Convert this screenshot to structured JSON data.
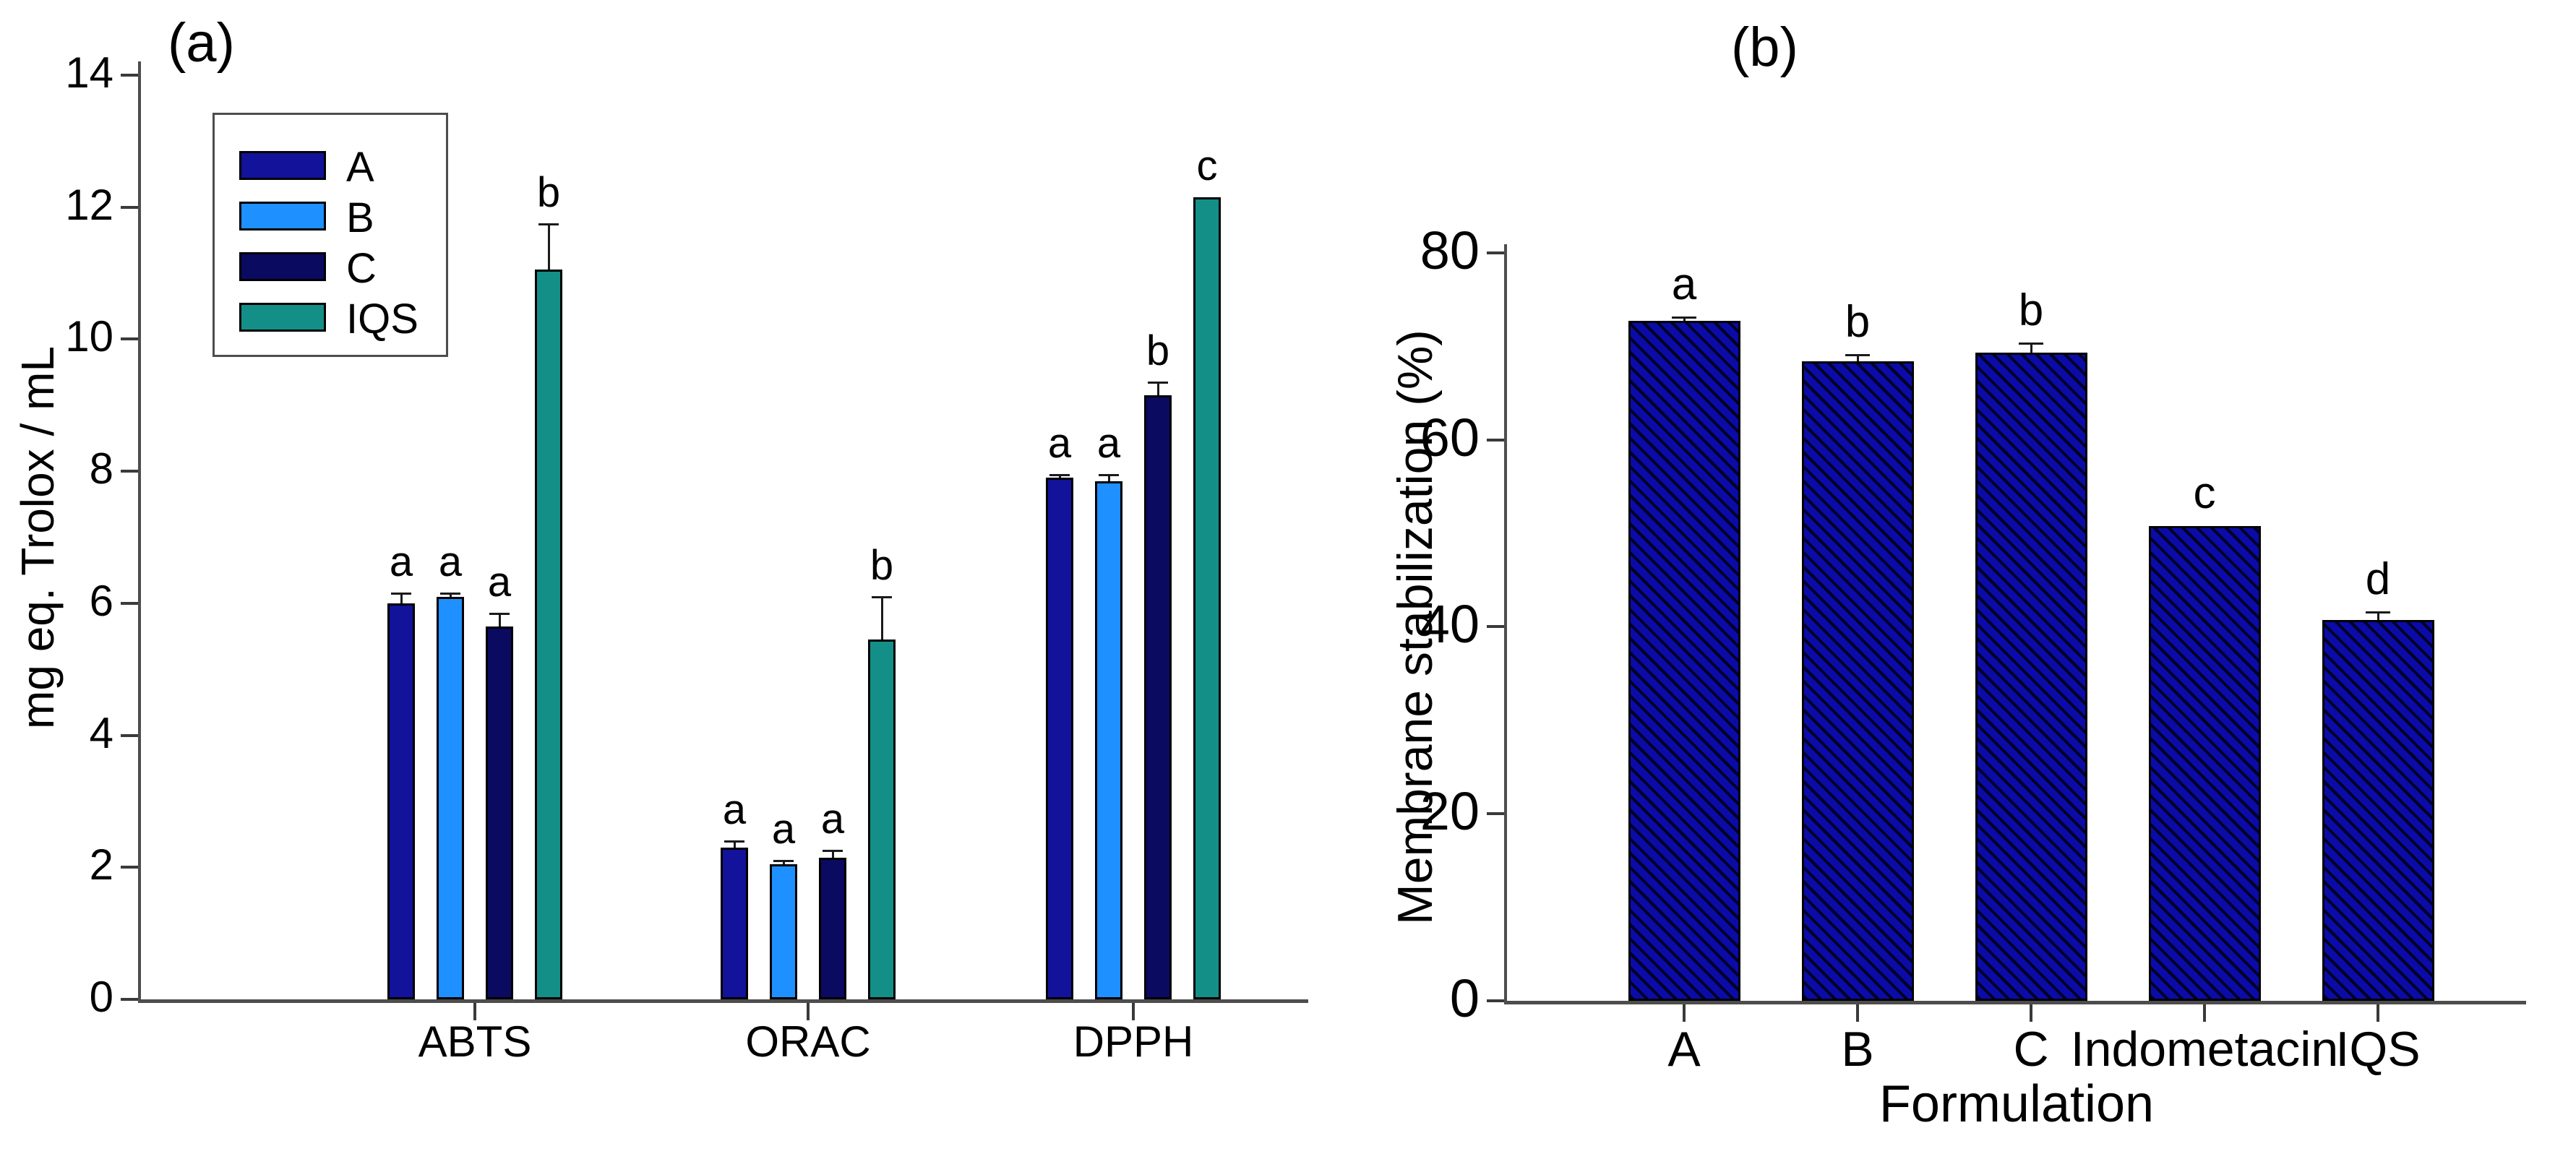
{
  "figure": {
    "background": "#ffffff",
    "axis_color": "#4d4d4d",
    "text_color": "#000000"
  },
  "chart_data": [
    {
      "type": "bar",
      "panel_label": "(a)",
      "ylabel": "mg eq. Trolox / mL",
      "xlabel": "",
      "ylim": [
        0,
        14
      ],
      "yticks": [
        0,
        2,
        4,
        6,
        8,
        10,
        12,
        14
      ],
      "grid": false,
      "categories": [
        "ABTS",
        "ORAC",
        "DPPH"
      ],
      "legend": {
        "position": "upper-left",
        "entries": [
          "A",
          "B",
          "C",
          "IQS"
        ]
      },
      "series": [
        {
          "name": "A",
          "color": "#12129B",
          "values": [
            6.0,
            2.3,
            7.9
          ],
          "errors": [
            0.15,
            0.1,
            0.05
          ],
          "sig_letters": [
            "a",
            "a",
            "a"
          ]
        },
        {
          "name": "B",
          "color": "#1E90FF",
          "values": [
            6.1,
            2.05,
            7.85
          ],
          "errors": [
            0.05,
            0.05,
            0.1
          ],
          "sig_letters": [
            "a",
            "a",
            "a"
          ]
        },
        {
          "name": "C",
          "color": "#0A0A60",
          "values": [
            5.65,
            2.15,
            9.15
          ],
          "errors": [
            0.2,
            0.1,
            0.2
          ],
          "sig_letters": [
            "a",
            "a",
            "b"
          ]
        },
        {
          "name": "IQS",
          "color": "#148F88",
          "values": [
            11.05,
            5.45,
            12.15
          ],
          "errors": [
            0.7,
            0.65,
            0
          ],
          "sig_letters": [
            "b",
            "b",
            "c"
          ]
        }
      ]
    },
    {
      "type": "bar",
      "panel_label": "(b)",
      "ylabel": "Membrane stabilization (%)",
      "xlabel": "Formulation",
      "ylim": [
        0,
        80
      ],
      "yticks": [
        0,
        20,
        40,
        60,
        80
      ],
      "grid": false,
      "categories": [
        "A",
        "B",
        "C",
        "Indometacin",
        "IQS"
      ],
      "series": [
        {
          "name": "Membrane stabilization",
          "color": "#0B0BA8",
          "hatch": "diagonal",
          "values": [
            72.7,
            68.4,
            69.3,
            50.8,
            40.7
          ],
          "errors": [
            0.4,
            0.7,
            1.0,
            0,
            0.9
          ],
          "sig_letters": [
            "a",
            "b",
            "b",
            "c",
            "d"
          ]
        }
      ]
    }
  ]
}
